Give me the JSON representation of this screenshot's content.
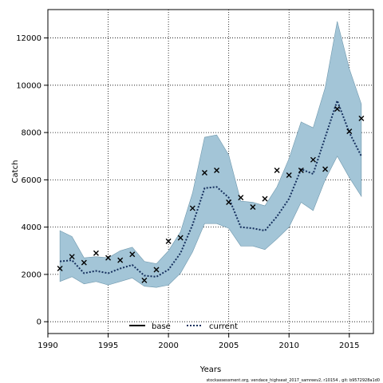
{
  "chart_data": {
    "type": "line",
    "title": "",
    "xlabel": "Years",
    "ylabel": "Catch",
    "xlim": [
      1990,
      2017
    ],
    "ylim": [
      -500,
      13200
    ],
    "x_ticks": [
      1990,
      1995,
      2000,
      2005,
      2010,
      2015
    ],
    "y_ticks": [
      0,
      2000,
      4000,
      6000,
      8000,
      10000,
      12000
    ],
    "grid": true,
    "legend_position": "bottom-center",
    "years": [
      1991,
      1992,
      1993,
      1994,
      1995,
      1996,
      1997,
      1998,
      1999,
      2000,
      2001,
      2002,
      2003,
      2004,
      2005,
      2006,
      2007,
      2008,
      2009,
      2010,
      2011,
      2012,
      2013,
      2014,
      2015,
      2016
    ],
    "band": {
      "color": "#a3c5d7",
      "lower": [
        1700,
        1900,
        1600,
        1700,
        1550,
        1700,
        1850,
        1500,
        1450,
        1550,
        2050,
        2950,
        4150,
        4150,
        3950,
        3200,
        3200,
        3050,
        3500,
        4000,
        5050,
        4700,
        6000,
        7000,
        6100,
        5300
      ],
      "upper": [
        3850,
        3600,
        2700,
        2750,
        2700,
        3000,
        3150,
        2550,
        2450,
        3000,
        3800,
        5450,
        7800,
        7900,
        7050,
        5100,
        5050,
        4900,
        5700,
        6900,
        8450,
        8200,
        9900,
        12700,
        10700,
        9200
      ]
    },
    "series": [
      {
        "name": "base",
        "style": "solid",
        "color": "#000000",
        "values": []
      },
      {
        "name": "current",
        "style": "dotted",
        "color": "#16305e",
        "values": [
          2550,
          2600,
          2050,
          2150,
          2050,
          2250,
          2400,
          1950,
          1900,
          2200,
          2900,
          4100,
          5650,
          5700,
          5250,
          4000,
          3950,
          3850,
          4450,
          5200,
          6450,
          6250,
          7800,
          9350,
          8000,
          7000
        ]
      }
    ],
    "observed": {
      "marker": "x",
      "color": "#000000",
      "values": [
        2250,
        2750,
        2500,
        2900,
        2700,
        2600,
        2850,
        1750,
        2200,
        3400,
        3550,
        4800,
        6300,
        6400,
        5050,
        5250,
        4850,
        5200,
        6400,
        6200,
        6400,
        6850,
        6450,
        9000,
        8050,
        8600
      ]
    },
    "footnote": "stockassessment.org,  vendace_highseat_2017_samreev2,  r10154 ,  git: b9572928a1d0"
  }
}
